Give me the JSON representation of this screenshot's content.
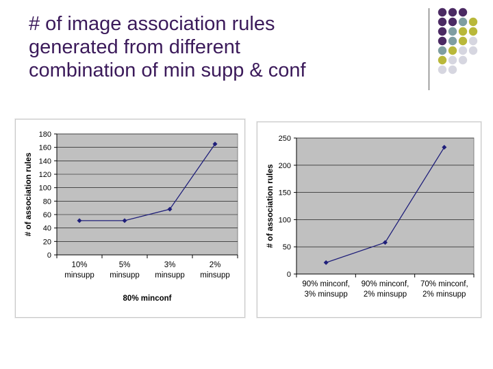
{
  "slide": {
    "title_lines": [
      "# of image association rules",
      "generated from different",
      "combination of min supp & conf"
    ]
  },
  "decoration": {
    "dot_colors": [
      "#4b2a63",
      "#7f9ea1",
      "#b9b83a",
      "#d6d6e0"
    ]
  },
  "chart_data": [
    {
      "type": "line",
      "categories": [
        [
          "10%",
          "minsupp"
        ],
        [
          "5%",
          "minsupp"
        ],
        [
          "3%",
          "minsupp"
        ],
        [
          "2%",
          "minsupp"
        ]
      ],
      "values": [
        51,
        51,
        68,
        165
      ],
      "title": "",
      "xlabel": "80% minconf",
      "ylabel": "# of association rules",
      "ylim": [
        0,
        180
      ],
      "yticks": [
        0,
        20,
        40,
        60,
        80,
        100,
        120,
        140,
        160,
        180
      ],
      "grid": true,
      "plot_background": "#c0c0c0",
      "line_color": "#1f1f7a"
    },
    {
      "type": "line",
      "categories": [
        [
          "90% minconf,",
          "3% minsupp"
        ],
        [
          "90% minconf,",
          "2% minsupp"
        ],
        [
          "70% minconf,",
          "2% minsupp"
        ]
      ],
      "values": [
        21,
        58,
        233
      ],
      "title": "",
      "xlabel": "",
      "ylabel": "# of association rules",
      "ylim": [
        0,
        250
      ],
      "yticks": [
        0,
        50,
        100,
        150,
        200,
        250
      ],
      "grid": true,
      "plot_background": "#c0c0c0",
      "line_color": "#1f1f7a"
    }
  ]
}
